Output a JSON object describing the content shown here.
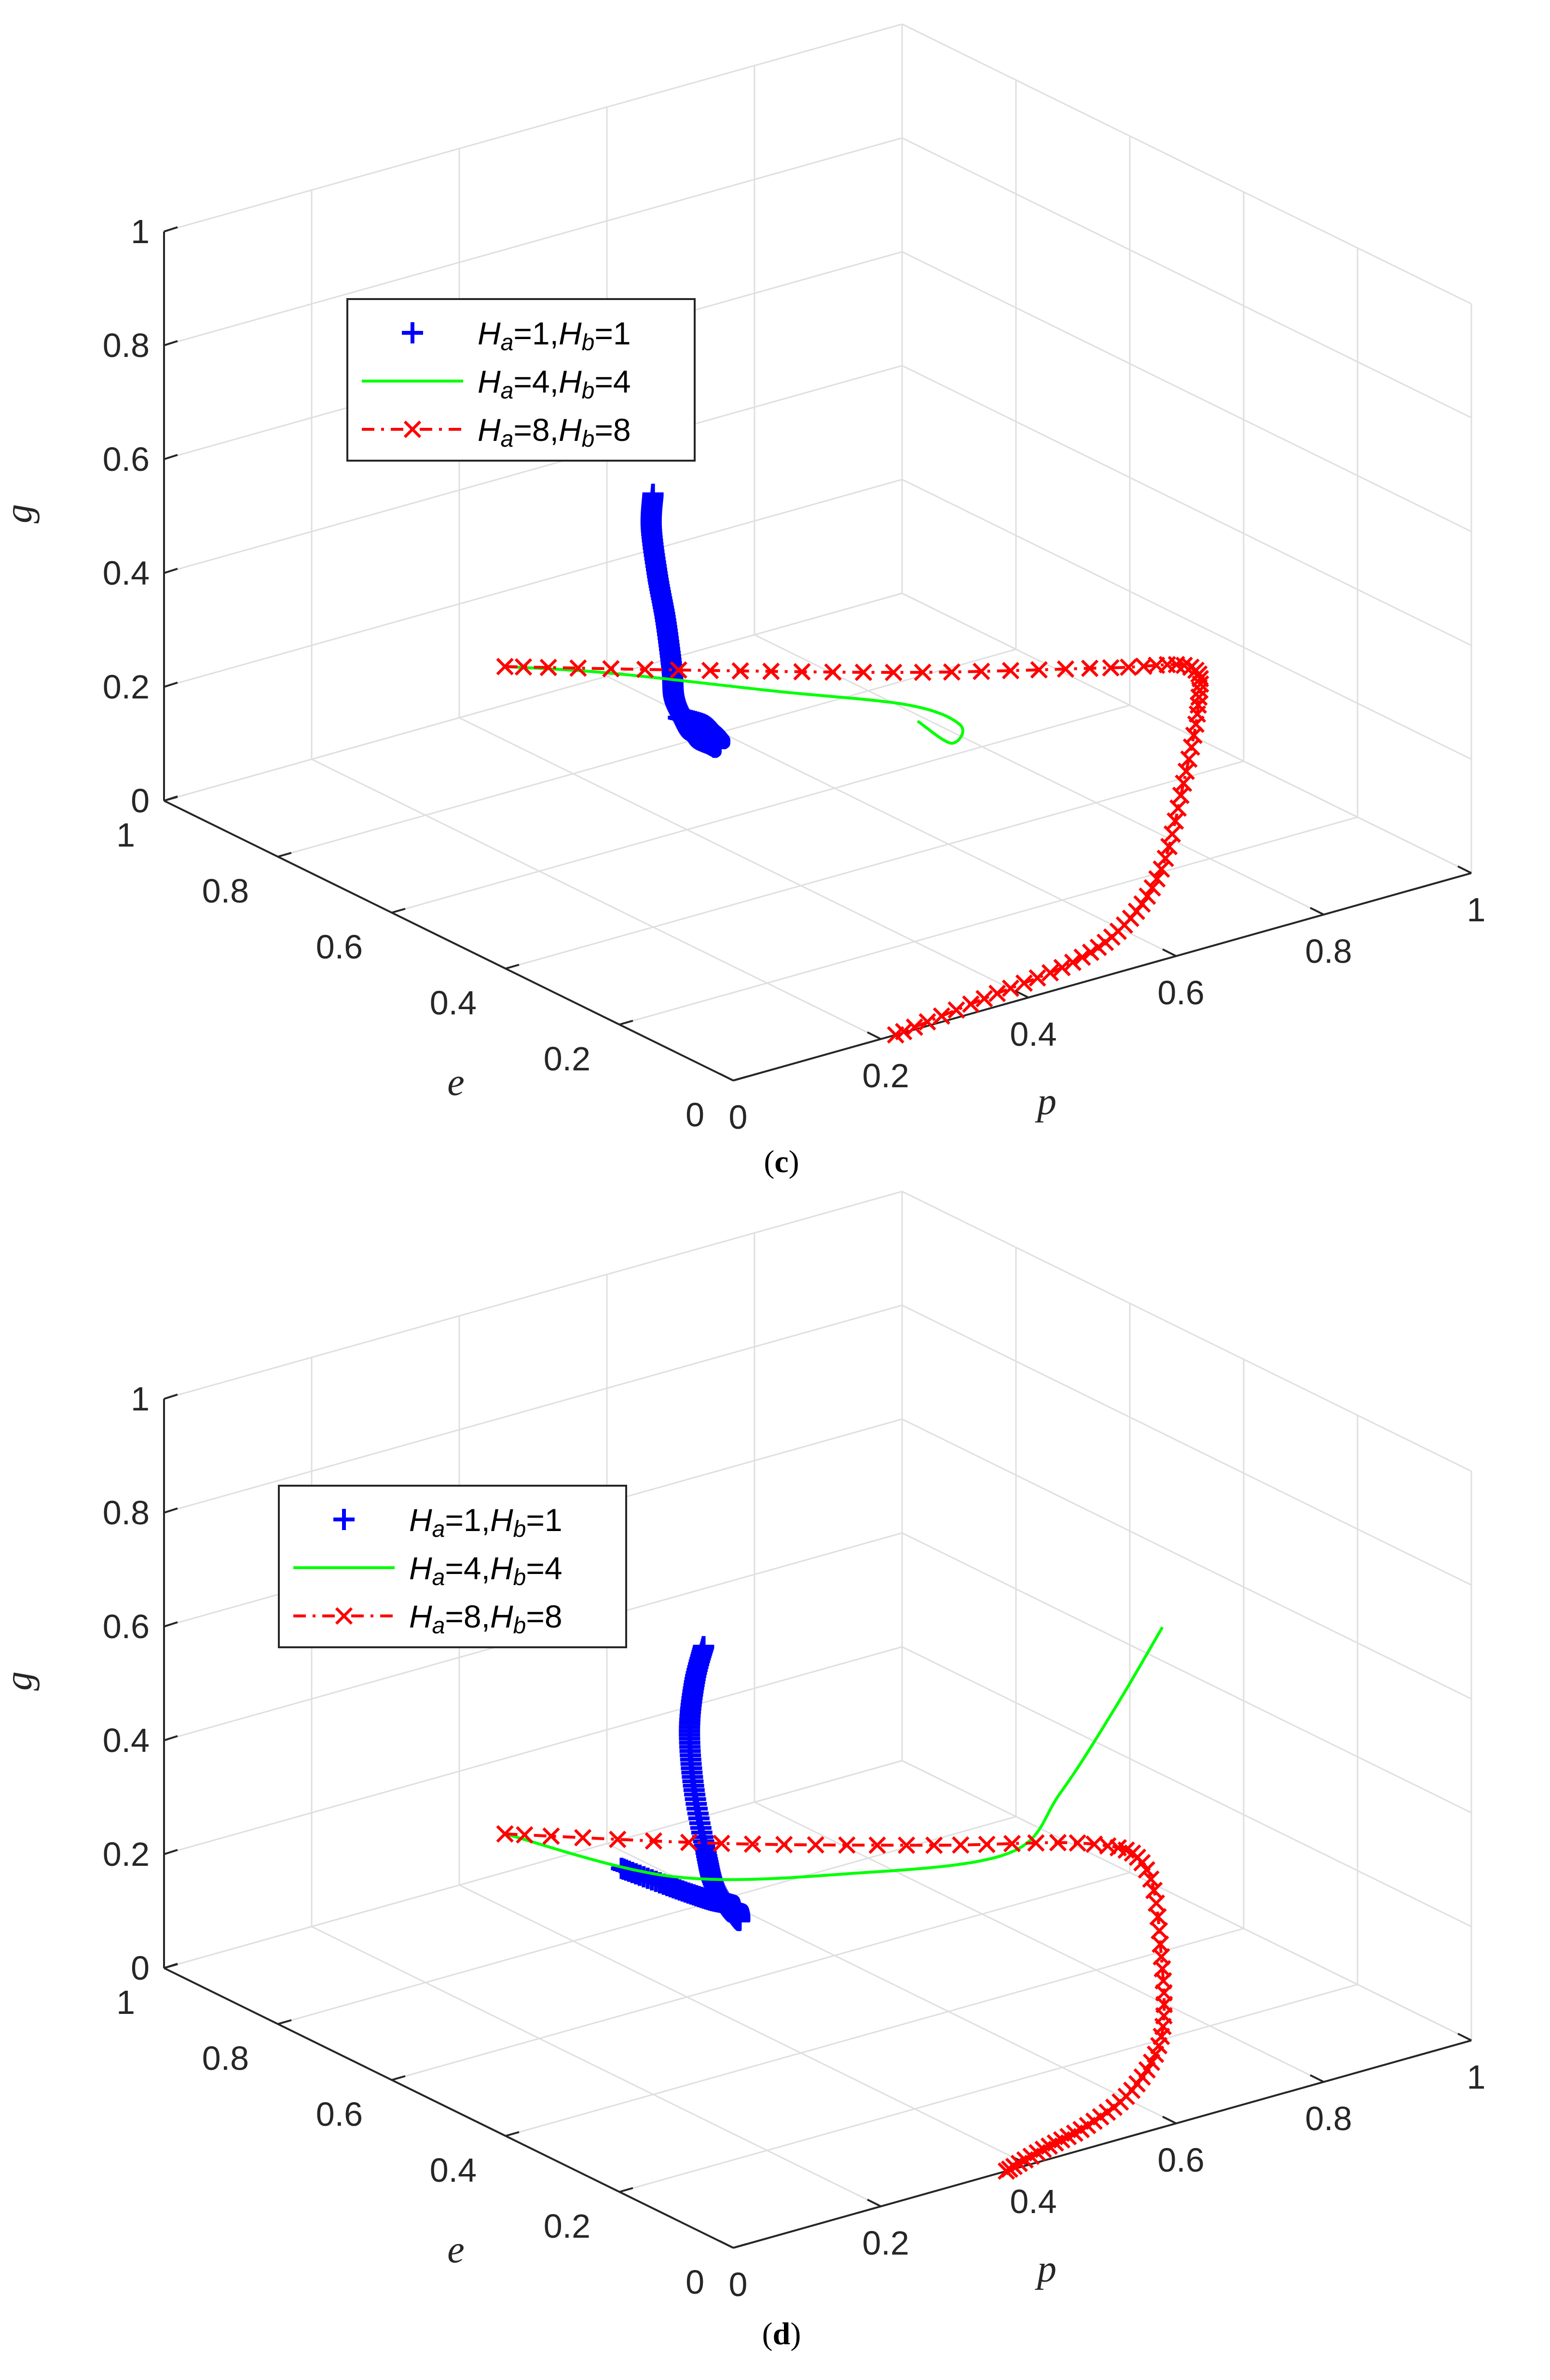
{
  "figure": {
    "panels": [
      {
        "caption": {
          "open": "(",
          "letter": "c",
          "close": ")"
        },
        "axis_labels": {
          "x": "p",
          "y": "e",
          "z": "g"
        },
        "ticks": {
          "z": [
            "0",
            "0.2",
            "0.4",
            "0.6",
            "0.8",
            "1"
          ],
          "e": [
            "1",
            "0.8",
            "0.6",
            "0.4",
            "0.2",
            "0"
          ],
          "p": [
            "0",
            "0.2",
            "0.4",
            "0.6",
            "0.8",
            "1"
          ]
        },
        "legend": [
          {
            "H": "H",
            "a": "a",
            "eq1": "=1,",
            "b": "b",
            "eq2": "=1",
            "color": "#0000ff",
            "marker": "plus",
            "line": "none"
          },
          {
            "H": "H",
            "a": "a",
            "eq1": "=4,",
            "b": "b",
            "eq2": "=4",
            "color": "#00ff00",
            "marker": "none",
            "line": "solid"
          },
          {
            "H": "H",
            "a": "a",
            "eq1": "=8,",
            "b": "b",
            "eq2": "=8",
            "color": "#ff0000",
            "marker": "x",
            "line": "dashdot"
          }
        ]
      },
      {
        "caption": {
          "open": "(",
          "letter": "d",
          "close": ")"
        },
        "axis_labels": {
          "x": "p",
          "y": "e",
          "z": "g"
        },
        "ticks": {
          "z": [
            "0",
            "0.2",
            "0.4",
            "0.6",
            "0.8",
            "1"
          ],
          "e": [
            "1",
            "0.8",
            "0.6",
            "0.4",
            "0.2",
            "0"
          ],
          "p": [
            "0",
            "0.2",
            "0.4",
            "0.6",
            "0.8",
            "1"
          ]
        },
        "legend": [
          {
            "H": "H",
            "a": "a",
            "eq1": "=1,",
            "b": "b",
            "eq2": "=1",
            "color": "#0000ff",
            "marker": "plus",
            "line": "none"
          },
          {
            "H": "H",
            "a": "a",
            "eq1": "=4,",
            "b": "b",
            "eq2": "=4",
            "color": "#00ff00",
            "marker": "none",
            "line": "solid"
          },
          {
            "H": "H",
            "a": "a",
            "eq1": "=8,",
            "b": "b",
            "eq2": "=8",
            "color": "#ff0000",
            "marker": "x",
            "line": "dashdot"
          }
        ]
      }
    ]
  },
  "chart_data": [
    {
      "type": "line",
      "projection": "3d",
      "xlabel": "p",
      "ylabel": "e",
      "zlabel": "g",
      "xlim": [
        0,
        1
      ],
      "ylim": [
        0,
        1
      ],
      "zlim": [
        0,
        1
      ],
      "grid": true,
      "legend_position": "top-left",
      "series": [
        {
          "name": "Ha=1,Hb=1",
          "color": "#0000ff",
          "marker": "plus",
          "line": "none",
          "points": [
            [
              0.3,
              0.53,
              0.66
            ],
            [
              0.29,
              0.52,
              0.61
            ],
            [
              0.26,
              0.47,
              0.56
            ],
            [
              0.24,
              0.43,
              0.51
            ],
            [
              0.21,
              0.38,
              0.46
            ],
            [
              0.19,
              0.35,
              0.43
            ],
            [
              0.18,
              0.32,
              0.41
            ],
            [
              0.17,
              0.29,
              0.4
            ],
            [
              0.16,
              0.25,
              0.41
            ],
            [
              0.15,
              0.23,
              0.42
            ],
            [
              0.13,
              0.2,
              0.44
            ],
            [
              0.12,
              0.18,
              0.46
            ],
            [
              0.11,
              0.17,
              0.48
            ],
            [
              0.1,
              0.18,
              0.5
            ],
            [
              0.08,
              0.2,
              0.51
            ]
          ]
        },
        {
          "name": "Ha=4,Hb=4",
          "color": "#00ff00",
          "marker": "none",
          "line": "solid",
          "points": [
            [
              0.03,
              0.44,
              0.5
            ],
            [
              0.12,
              0.37,
              0.49
            ],
            [
              0.25,
              0.25,
              0.47
            ],
            [
              0.36,
              0.16,
              0.45
            ],
            [
              0.4,
              0.12,
              0.42
            ],
            [
              0.38,
              0.11,
              0.4
            ],
            [
              0.35,
              0.13,
              0.44
            ]
          ]
        },
        {
          "name": "Ha=8,Hb=8",
          "color": "#ff0000",
          "marker": "x",
          "line": "dashdot",
          "points": [
            [
              0.03,
              0.44,
              0.5
            ],
            [
              0.2,
              0.3,
              0.5
            ],
            [
              0.38,
              0.16,
              0.5
            ],
            [
              0.55,
              0.05,
              0.5
            ],
            [
              0.62,
              0.0,
              0.5
            ],
            [
              0.63,
              0.0,
              0.43
            ],
            [
              0.61,
              0.0,
              0.3
            ],
            [
              0.58,
              0.0,
              0.16
            ],
            [
              0.53,
              0.0,
              0.08
            ],
            [
              0.46,
              0.0,
              0.04
            ],
            [
              0.34,
              0.0,
              0.02
            ],
            [
              0.22,
              0.0,
              0.0
            ]
          ]
        }
      ]
    },
    {
      "type": "line",
      "projection": "3d",
      "xlabel": "p",
      "ylabel": "e",
      "zlabel": "g",
      "xlim": [
        0,
        1
      ],
      "ylim": [
        0,
        1
      ],
      "zlim": [
        0,
        1
      ],
      "grid": true,
      "legend_position": "top-left",
      "series": [
        {
          "name": "Ha=1,Hb=1",
          "color": "#0000ff",
          "marker": "plus",
          "line": "none",
          "points": [
            [
              0.33,
              0.48,
              0.7
            ],
            [
              0.31,
              0.47,
              0.65
            ],
            [
              0.28,
              0.44,
              0.59
            ],
            [
              0.24,
              0.38,
              0.53
            ],
            [
              0.21,
              0.32,
              0.46
            ],
            [
              0.19,
              0.28,
              0.43
            ],
            [
              0.18,
              0.24,
              0.41
            ],
            [
              0.17,
              0.21,
              0.41
            ],
            [
              0.16,
              0.2,
              0.44
            ],
            [
              0.14,
              0.19,
              0.46
            ],
            [
              0.12,
              0.2,
              0.47
            ],
            [
              0.1,
              0.24,
              0.48
            ],
            [
              0.08,
              0.3,
              0.49
            ]
          ]
        },
        {
          "name": "Ha=4,Hb=4",
          "color": "#00ff00",
          "marker": "none",
          "line": "solid",
          "points": [
            [
              0.03,
              0.44,
              0.5
            ],
            [
              0.15,
              0.3,
              0.45
            ],
            [
              0.3,
              0.18,
              0.46
            ],
            [
              0.45,
              0.1,
              0.48
            ],
            [
              0.52,
              0.1,
              0.56
            ],
            [
              0.58,
              0.08,
              0.7
            ],
            [
              0.62,
              0.05,
              0.84
            ]
          ]
        },
        {
          "name": "Ha=8,Hb=8",
          "color": "#ff0000",
          "marker": "x",
          "line": "dashdot",
          "points": [
            [
              0.03,
              0.44,
              0.5
            ],
            [
              0.2,
              0.28,
              0.5
            ],
            [
              0.38,
              0.14,
              0.5
            ],
            [
              0.52,
              0.04,
              0.5
            ],
            [
              0.56,
              0.0,
              0.46
            ],
            [
              0.58,
              0.0,
              0.3
            ],
            [
              0.58,
              0.0,
              0.16
            ],
            [
              0.54,
              0.0,
              0.08
            ],
            [
              0.48,
              0.0,
              0.04
            ],
            [
              0.42,
              0.0,
              0.02
            ],
            [
              0.37,
              0.0,
              0.0
            ]
          ]
        }
      ]
    }
  ]
}
